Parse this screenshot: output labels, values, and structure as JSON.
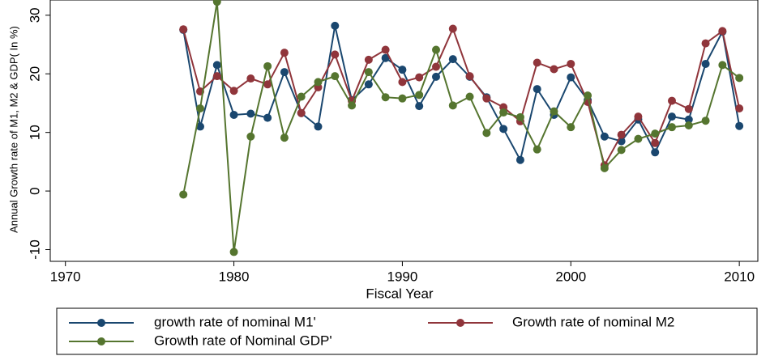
{
  "chart_data": {
    "type": "line",
    "x_label": "Fiscal Year",
    "y_label": "Annual Growth rate of M1, M2 & GDP( In %)",
    "x": [
      1977,
      1978,
      1979,
      1980,
      1981,
      1982,
      1983,
      1984,
      1985,
      1986,
      1987,
      1988,
      1989,
      1990,
      1991,
      1992,
      1993,
      1994,
      1995,
      1996,
      1997,
      1998,
      1999,
      2000,
      2001,
      2002,
      2003,
      2004,
      2005,
      2006,
      2007,
      2008,
      2009,
      2010
    ],
    "series": [
      {
        "name": "growth rate of nominal M1'",
        "color": "#1a476f",
        "values": [
          27.5,
          11,
          21.5,
          13,
          13.2,
          12.5,
          20.3,
          13.3,
          11,
          28.2,
          15.5,
          18.2,
          22.7,
          20.7,
          14.5,
          19.5,
          22.5,
          19.5,
          16,
          10.6,
          5.3,
          17.4,
          13,
          19.4,
          15.5,
          9.3,
          8.5,
          12.2,
          6.6,
          12.7,
          12.2,
          21.7,
          27.2,
          11.1
        ]
      },
      {
        "name": "Growth rate of nominal M2",
        "color": "#90353b",
        "values": [
          27.6,
          17,
          19.6,
          17.1,
          19.2,
          18.2,
          23.6,
          13.3,
          17.7,
          23.3,
          15.4,
          22.4,
          24.1,
          18.6,
          19.4,
          21.2,
          27.7,
          19.6,
          15.8,
          14.3,
          11.9,
          21.9,
          20.8,
          21.7,
          15.2,
          4.4,
          9.6,
          12.7,
          8.2,
          15.4,
          14,
          25.2,
          27.3,
          14.1
        ]
      },
      {
        "name": "Growth rate of Nominal GDP'",
        "color": "#55752f",
        "values": [
          -0.6,
          14.1,
          32.3,
          -10.4,
          9.3,
          21.3,
          9.1,
          16.1,
          18.6,
          19.6,
          14.6,
          20.3,
          16,
          15.8,
          16.4,
          24.1,
          14.6,
          16.1,
          9.9,
          13.4,
          12.6,
          7.1,
          13.6,
          10.9,
          16.3,
          3.9,
          7,
          8.9,
          9.8,
          10.9,
          11.2,
          12,
          21.5,
          19.3
        ]
      }
    ],
    "xlim": [
      1969.1,
      2011.1
    ],
    "xticks": [
      1970,
      1980,
      1990,
      2000,
      2010
    ],
    "ylim": [
      -12,
      32.6
    ],
    "yticks": [
      -10,
      0,
      10,
      20,
      30
    ]
  }
}
